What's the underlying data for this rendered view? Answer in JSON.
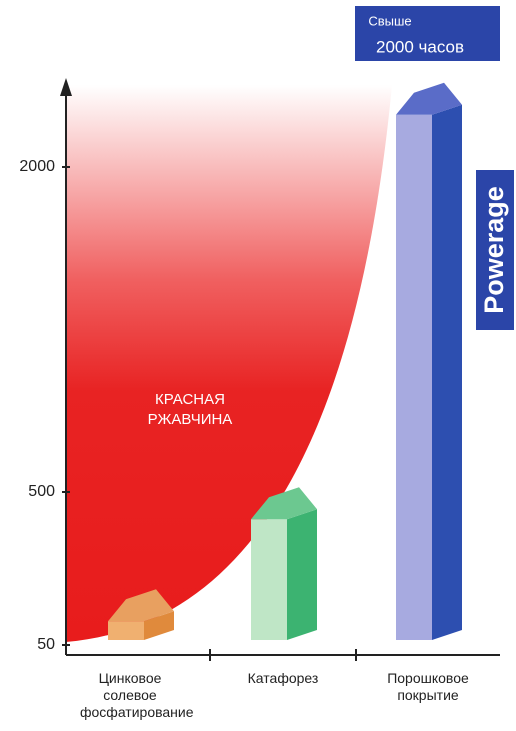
{
  "chart_data": {
    "type": "bar",
    "categories": [
      "Цинковое солевое фосфатирование",
      "Катафорез",
      "Порошковое покрытие"
    ],
    "values": [
      120,
      420,
      2300
    ],
    "colors": [
      {
        "front": "#f0b070",
        "side": "#e08a3c",
        "roof": "#e8a060"
      },
      {
        "front": "#bfe6c6",
        "side": "#3cb371",
        "roof": "#6cc890"
      },
      {
        "front": "#a7aae0",
        "side": "#2d4fb0",
        "roof": "#5a6cc8"
      }
    ],
    "ylim": [
      0,
      2500
    ],
    "yticks": [
      50,
      500,
      2000
    ],
    "area_label": "КРАСНАЯ РЖАВЧИНА",
    "callout_small": "Свыше",
    "callout_main": "2000 часов",
    "logo": "Powerage"
  }
}
